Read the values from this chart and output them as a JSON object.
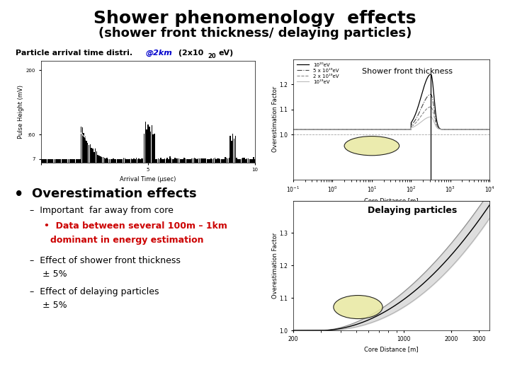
{
  "title": "Shower phenomenology  effects",
  "subtitle": "(shower front thickness/ delaying particles)",
  "label_top_right": "Shower front thickness",
  "label_bot_right": "Delaying particles",
  "bg_color": "#ffffff",
  "text_color": "#000000",
  "blue_color": "#0000cc",
  "red_color": "#cc0000",
  "legend_entries": [
    "10²⁰eV",
    "5 x 10¹⁹eV",
    "2 x 10¹⁹eV",
    "10¹⁹eV"
  ],
  "title_fontsize": 18,
  "subtitle_fontsize": 13,
  "label_fontsize": 8,
  "axis_fontsize": 6,
  "bullet_fontsize": 13,
  "body_fontsize": 9,
  "small_fontsize": 7
}
